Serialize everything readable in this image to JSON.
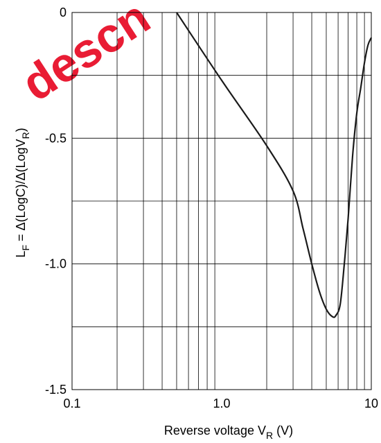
{
  "watermark": "descn",
  "chart_data": {
    "type": "line",
    "title": "",
    "xlabel": "Reverse voltage  V_R  (V)",
    "xlabel_parts": {
      "main": "Reverse voltage  V",
      "sub": "R",
      "unit": "  (V)"
    },
    "ylabel": "L_F = Δ(LogC)/Δ(LogV_R)",
    "ylabel_parts": {
      "l": "L",
      "l_sub": "F",
      "mid": " = Δ(LogC)/Δ(LogV",
      "v_sub": "R",
      "end": ")"
    },
    "xscale": "log",
    "xlim": [
      0.1,
      10
    ],
    "ylim": [
      -1.5,
      0
    ],
    "xticks": [
      {
        "value": 0.1,
        "label": "0.1"
      },
      {
        "value": 1,
        "label": "1.0"
      },
      {
        "value": 10,
        "label": "10"
      }
    ],
    "yticks": [
      {
        "value": 0,
        "label": "0"
      },
      {
        "value": -0.5,
        "label": "-0.5"
      },
      {
        "value": -1.0,
        "label": "-1.0"
      },
      {
        "value": -1.5,
        "label": "-1.5"
      }
    ],
    "y_gridlines": [
      0,
      -0.25,
      -0.5,
      -0.75,
      -1.0,
      -1.25,
      -1.5
    ],
    "grid": true,
    "legend": "none",
    "series": [
      {
        "color": "#1a1a1a",
        "x": [
          0.5,
          1.0,
          2.0,
          3.0,
          3.5,
          4.0,
          4.5,
          5.0,
          5.5,
          5.8,
          6.2,
          6.6,
          7.0,
          7.5,
          8.0,
          8.5,
          9.0,
          9.5,
          10.0
        ],
        "y": [
          0,
          -0.27,
          -0.53,
          -0.71,
          -0.86,
          -1.0,
          -1.11,
          -1.18,
          -1.21,
          -1.205,
          -1.16,
          -1.0,
          -0.82,
          -0.57,
          -0.4,
          -0.3,
          -0.2,
          -0.13,
          -0.1
        ]
      }
    ]
  }
}
